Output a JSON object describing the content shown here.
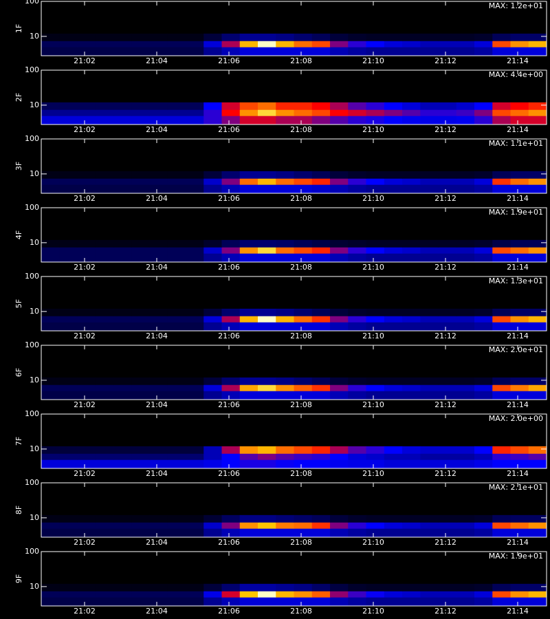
{
  "chart_data": {
    "type": "heatmap",
    "xlim": [
      0.8,
      14.8
    ],
    "xticks": [
      {
        "value": 2,
        "label": "21:02"
      },
      {
        "value": 4,
        "label": "21:04"
      },
      {
        "value": 6,
        "label": "21:06"
      },
      {
        "value": 8,
        "label": "21:08"
      },
      {
        "value": 10,
        "label": "21:10"
      },
      {
        "value": 12,
        "label": "21:12"
      },
      {
        "value": 14,
        "label": "21:14"
      }
    ],
    "ylim": [
      2.8,
      100
    ],
    "yticks": [
      10,
      100
    ],
    "ylog": true,
    "zlim": [
      0,
      1
    ],
    "xbins": [
      0.8,
      1.3,
      1.8,
      2.3,
      2.8,
      3.3,
      3.8,
      4.3,
      4.8,
      5.3,
      5.8,
      6.3,
      6.8,
      7.3,
      7.8,
      8.3,
      8.8,
      9.3,
      9.8,
      10.3,
      10.8,
      11.3,
      11.8,
      12.3,
      12.8,
      13.3,
      13.8,
      14.3,
      14.8
    ],
    "ybins": [
      2.8,
      5,
      7.5,
      12
    ],
    "panels": [
      {
        "ylabel": "1F",
        "title": "MAX: 1.2e+01",
        "values": [
          [
            0.1,
            0.1,
            0.1,
            0.1,
            0.1,
            0.1,
            0.1,
            0.1,
            0.1,
            0.2,
            0.25,
            0.3,
            0.3,
            0.3,
            0.3,
            0.3,
            0.25,
            0.22,
            0.2,
            0.2,
            0.2,
            0.2,
            0.2,
            0.2,
            0.22,
            0.3,
            0.3,
            0.3
          ],
          [
            0.12,
            0.12,
            0.12,
            0.12,
            0.12,
            0.12,
            0.12,
            0.12,
            0.12,
            0.3,
            0.55,
            0.9,
            1,
            0.9,
            0.8,
            0.75,
            0.5,
            0.4,
            0.35,
            0.3,
            0.28,
            0.25,
            0.25,
            0.25,
            0.3,
            0.75,
            0.85,
            0.9
          ],
          [
            0.03,
            0.03,
            0.03,
            0.03,
            0.03,
            0.03,
            0.03,
            0.03,
            0.03,
            0.08,
            0.15,
            0.2,
            0.2,
            0.18,
            0.15,
            0.12,
            0.08,
            0.06,
            0.05,
            0.05,
            0.05,
            0.05,
            0.05,
            0.05,
            0.06,
            0.12,
            0.14,
            0.14
          ]
        ]
      },
      {
        "ylabel": "2F",
        "title": "MAX: 4.4e+00",
        "values": [
          [
            0.3,
            0.3,
            0.3,
            0.3,
            0.3,
            0.3,
            0.3,
            0.3,
            0.3,
            0.4,
            0.5,
            0.6,
            0.6,
            0.55,
            0.55,
            0.5,
            0.45,
            0.4,
            0.38,
            0.35,
            0.33,
            0.32,
            0.32,
            0.33,
            0.4,
            0.55,
            0.6,
            0.6
          ],
          [
            0.2,
            0.2,
            0.2,
            0.2,
            0.2,
            0.2,
            0.2,
            0.2,
            0.2,
            0.4,
            0.65,
            0.85,
            0.95,
            0.85,
            0.8,
            0.75,
            0.65,
            0.6,
            0.55,
            0.5,
            0.45,
            0.4,
            0.4,
            0.42,
            0.5,
            0.75,
            0.8,
            0.85
          ],
          [
            0.12,
            0.12,
            0.12,
            0.12,
            0.12,
            0.12,
            0.12,
            0.12,
            0.12,
            0.35,
            0.6,
            0.75,
            0.8,
            0.7,
            0.7,
            0.65,
            0.55,
            0.45,
            0.4,
            0.35,
            0.3,
            0.25,
            0.25,
            0.28,
            0.35,
            0.6,
            0.65,
            0.7
          ]
        ]
      },
      {
        "ylabel": "3F",
        "title": "MAX: 1.1e+01",
        "values": [
          [
            0.1,
            0.1,
            0.1,
            0.1,
            0.1,
            0.1,
            0.1,
            0.1,
            0.1,
            0.2,
            0.25,
            0.3,
            0.3,
            0.3,
            0.3,
            0.28,
            0.25,
            0.22,
            0.2,
            0.2,
            0.2,
            0.2,
            0.2,
            0.2,
            0.22,
            0.3,
            0.3,
            0.3
          ],
          [
            0.12,
            0.12,
            0.12,
            0.12,
            0.12,
            0.12,
            0.12,
            0.12,
            0.12,
            0.28,
            0.5,
            0.8,
            0.9,
            0.8,
            0.75,
            0.7,
            0.5,
            0.4,
            0.35,
            0.3,
            0.28,
            0.25,
            0.25,
            0.25,
            0.3,
            0.72,
            0.8,
            0.85
          ],
          [
            0.03,
            0.03,
            0.03,
            0.03,
            0.03,
            0.03,
            0.03,
            0.03,
            0.03,
            0.08,
            0.15,
            0.2,
            0.2,
            0.18,
            0.15,
            0.12,
            0.08,
            0.06,
            0.05,
            0.05,
            0.05,
            0.05,
            0.05,
            0.05,
            0.06,
            0.12,
            0.14,
            0.14
          ]
        ]
      },
      {
        "ylabel": "4F",
        "title": "MAX: 1.9e+01",
        "values": [
          [
            0.12,
            0.12,
            0.12,
            0.12,
            0.12,
            0.12,
            0.12,
            0.12,
            0.12,
            0.2,
            0.25,
            0.3,
            0.3,
            0.3,
            0.3,
            0.3,
            0.25,
            0.22,
            0.2,
            0.2,
            0.2,
            0.2,
            0.2,
            0.2,
            0.22,
            0.3,
            0.3,
            0.3
          ],
          [
            0.12,
            0.12,
            0.12,
            0.12,
            0.12,
            0.12,
            0.12,
            0.12,
            0.12,
            0.28,
            0.5,
            0.85,
            0.95,
            0.8,
            0.75,
            0.7,
            0.5,
            0.4,
            0.35,
            0.3,
            0.28,
            0.25,
            0.25,
            0.25,
            0.3,
            0.75,
            0.8,
            0.85
          ],
          [
            0.03,
            0.03,
            0.03,
            0.03,
            0.03,
            0.03,
            0.03,
            0.03,
            0.03,
            0.06,
            0.12,
            0.15,
            0.15,
            0.14,
            0.12,
            0.1,
            0.07,
            0.06,
            0.05,
            0.05,
            0.05,
            0.05,
            0.05,
            0.05,
            0.06,
            0.1,
            0.12,
            0.12
          ]
        ]
      },
      {
        "ylabel": "5F",
        "title": "MAX: 1.3e+01",
        "values": [
          [
            0.1,
            0.1,
            0.1,
            0.1,
            0.1,
            0.1,
            0.1,
            0.1,
            0.1,
            0.2,
            0.25,
            0.3,
            0.3,
            0.3,
            0.3,
            0.3,
            0.25,
            0.22,
            0.2,
            0.2,
            0.2,
            0.2,
            0.2,
            0.2,
            0.22,
            0.3,
            0.3,
            0.3
          ],
          [
            0.12,
            0.12,
            0.12,
            0.12,
            0.12,
            0.12,
            0.12,
            0.12,
            0.12,
            0.3,
            0.55,
            0.9,
            1,
            0.9,
            0.8,
            0.72,
            0.5,
            0.4,
            0.35,
            0.3,
            0.28,
            0.25,
            0.25,
            0.25,
            0.3,
            0.75,
            0.85,
            0.9
          ],
          [
            0.03,
            0.03,
            0.03,
            0.03,
            0.03,
            0.03,
            0.03,
            0.03,
            0.03,
            0.08,
            0.15,
            0.2,
            0.2,
            0.18,
            0.15,
            0.12,
            0.08,
            0.06,
            0.05,
            0.05,
            0.05,
            0.05,
            0.05,
            0.05,
            0.06,
            0.12,
            0.14,
            0.14
          ]
        ]
      },
      {
        "ylabel": "6F",
        "title": "MAX: 2.0e+01",
        "values": [
          [
            0.1,
            0.1,
            0.1,
            0.1,
            0.1,
            0.1,
            0.1,
            0.1,
            0.1,
            0.2,
            0.25,
            0.3,
            0.3,
            0.3,
            0.3,
            0.3,
            0.25,
            0.22,
            0.2,
            0.2,
            0.2,
            0.2,
            0.2,
            0.2,
            0.22,
            0.3,
            0.3,
            0.3
          ],
          [
            0.12,
            0.12,
            0.12,
            0.12,
            0.12,
            0.12,
            0.12,
            0.12,
            0.12,
            0.3,
            0.55,
            0.88,
            0.95,
            0.85,
            0.78,
            0.72,
            0.5,
            0.4,
            0.35,
            0.3,
            0.28,
            0.25,
            0.25,
            0.25,
            0.3,
            0.75,
            0.82,
            0.88
          ],
          [
            0.03,
            0.03,
            0.03,
            0.03,
            0.03,
            0.03,
            0.03,
            0.03,
            0.03,
            0.08,
            0.15,
            0.2,
            0.2,
            0.18,
            0.15,
            0.12,
            0.08,
            0.06,
            0.05,
            0.05,
            0.05,
            0.05,
            0.05,
            0.05,
            0.06,
            0.12,
            0.14,
            0.14
          ]
        ]
      },
      {
        "ylabel": "7F",
        "title": "MAX: 2.0e+00",
        "values": [
          [
            0.3,
            0.3,
            0.3,
            0.3,
            0.3,
            0.3,
            0.3,
            0.3,
            0.3,
            0.32,
            0.35,
            0.38,
            0.38,
            0.36,
            0.35,
            0.35,
            0.33,
            0.32,
            0.32,
            0.3,
            0.3,
            0.3,
            0.3,
            0.3,
            0.32,
            0.35,
            0.35,
            0.35
          ],
          [
            0.15,
            0.15,
            0.15,
            0.15,
            0.15,
            0.15,
            0.15,
            0.15,
            0.15,
            0.25,
            0.35,
            0.45,
            0.5,
            0.45,
            0.42,
            0.4,
            0.35,
            0.3,
            0.28,
            0.25,
            0.25,
            0.22,
            0.22,
            0.22,
            0.25,
            0.4,
            0.42,
            0.45
          ],
          [
            0.08,
            0.08,
            0.08,
            0.08,
            0.08,
            0.08,
            0.08,
            0.08,
            0.08,
            0.25,
            0.55,
            0.85,
            0.9,
            0.8,
            0.75,
            0.7,
            0.55,
            0.45,
            0.4,
            0.35,
            0.3,
            0.28,
            0.28,
            0.28,
            0.35,
            0.7,
            0.75,
            0.8
          ]
        ]
      },
      {
        "ylabel": "8F",
        "title": "MAX: 2.1e+01",
        "values": [
          [
            0.1,
            0.1,
            0.1,
            0.1,
            0.1,
            0.1,
            0.1,
            0.1,
            0.1,
            0.2,
            0.25,
            0.3,
            0.3,
            0.3,
            0.3,
            0.3,
            0.25,
            0.22,
            0.2,
            0.2,
            0.2,
            0.2,
            0.2,
            0.2,
            0.22,
            0.3,
            0.3,
            0.3
          ],
          [
            0.12,
            0.12,
            0.12,
            0.12,
            0.12,
            0.12,
            0.12,
            0.12,
            0.12,
            0.28,
            0.5,
            0.85,
            0.92,
            0.82,
            0.8,
            0.72,
            0.5,
            0.4,
            0.35,
            0.3,
            0.28,
            0.25,
            0.25,
            0.25,
            0.3,
            0.75,
            0.8,
            0.85
          ],
          [
            0.03,
            0.03,
            0.03,
            0.03,
            0.03,
            0.03,
            0.03,
            0.03,
            0.03,
            0.07,
            0.13,
            0.18,
            0.18,
            0.16,
            0.14,
            0.12,
            0.08,
            0.06,
            0.05,
            0.05,
            0.05,
            0.05,
            0.05,
            0.05,
            0.06,
            0.12,
            0.13,
            0.13
          ]
        ]
      },
      {
        "ylabel": "9F",
        "title": "MAX: 1.9e+01",
        "values": [
          [
            0.1,
            0.1,
            0.1,
            0.1,
            0.1,
            0.1,
            0.1,
            0.1,
            0.1,
            0.2,
            0.25,
            0.3,
            0.3,
            0.3,
            0.3,
            0.3,
            0.25,
            0.22,
            0.2,
            0.2,
            0.2,
            0.2,
            0.2,
            0.2,
            0.22,
            0.3,
            0.3,
            0.3
          ],
          [
            0.12,
            0.12,
            0.12,
            0.12,
            0.12,
            0.12,
            0.12,
            0.12,
            0.12,
            0.32,
            0.6,
            0.92,
            1,
            0.9,
            0.85,
            0.78,
            0.52,
            0.42,
            0.36,
            0.3,
            0.28,
            0.25,
            0.25,
            0.25,
            0.3,
            0.75,
            0.85,
            0.9
          ],
          [
            0.03,
            0.03,
            0.03,
            0.03,
            0.03,
            0.03,
            0.03,
            0.03,
            0.03,
            0.08,
            0.15,
            0.22,
            0.22,
            0.2,
            0.18,
            0.14,
            0.09,
            0.06,
            0.05,
            0.05,
            0.05,
            0.05,
            0.05,
            0.05,
            0.06,
            0.12,
            0.14,
            0.14
          ]
        ]
      }
    ]
  }
}
